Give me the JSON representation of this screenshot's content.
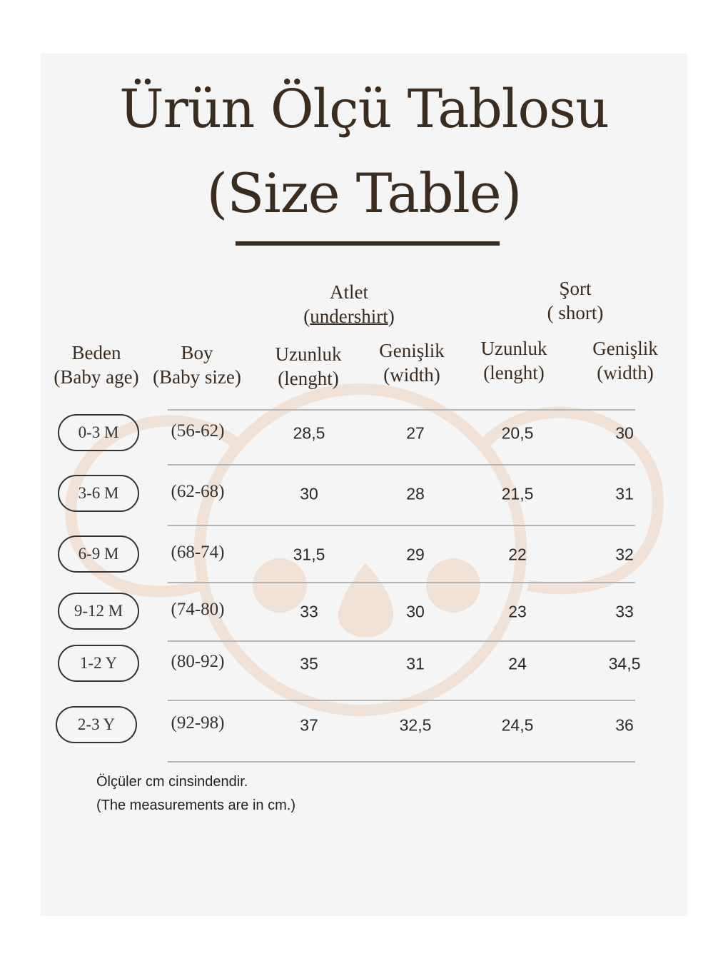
{
  "title": {
    "line1": "Ürün Ölçü Tablosu",
    "line2": "(Size Table)"
  },
  "groups": {
    "atlet": {
      "label": "Atlet",
      "sub_open": "(",
      "sub": "undershirt",
      "sub_close": ")"
    },
    "sort": {
      "label": "Şort",
      "sub": "( short)"
    }
  },
  "columns": [
    {
      "tr": "Beden",
      "en": "(Baby age)"
    },
    {
      "tr": "Boy",
      "en": "(Baby size)"
    },
    {
      "tr": "Uzunluk",
      "en": "(lenght)"
    },
    {
      "tr": "Genişlik",
      "en": "(width)"
    },
    {
      "tr": "Uzunluk",
      "en": "(lenght)"
    },
    {
      "tr": "Genişlik",
      "en": "(width)"
    }
  ],
  "rows": [
    {
      "age": "0-3 M",
      "size": "(56-62)",
      "atlet_len": "28,5",
      "atlet_wid": "27",
      "sort_len": "20,5",
      "sort_wid": "30"
    },
    {
      "age": "3-6 M",
      "size": "(62-68)",
      "atlet_len": "30",
      "atlet_wid": "28",
      "sort_len": "21,5",
      "sort_wid": "31"
    },
    {
      "age": "6-9 M",
      "size": "(68-74)",
      "atlet_len": "31,5",
      "atlet_wid": "29",
      "sort_len": "22",
      "sort_wid": "32"
    },
    {
      "age": "9-12 M",
      "size": "(74-80)",
      "atlet_len": "33",
      "atlet_wid": "30",
      "sort_len": "23",
      "sort_wid": "33"
    },
    {
      "age": "1-2 Y",
      "size": "(80-92)",
      "atlet_len": "35",
      "atlet_wid": "31",
      "sort_len": "24",
      "sort_wid": "34,5"
    },
    {
      "age": "2-3 Y",
      "size": "(92-98)",
      "atlet_len": "37",
      "atlet_wid": "32,5",
      "sort_len": "24,5",
      "sort_wid": "36"
    }
  ],
  "notes": {
    "tr": "Ölçüler cm cinsindendir.",
    "en": "(The measurements are in cm.)"
  },
  "colors": {
    "text": "#3b2c20",
    "watermark": "#f0e2d6",
    "background": "#f5f5f5"
  },
  "watermark_icon": "koala-icon"
}
